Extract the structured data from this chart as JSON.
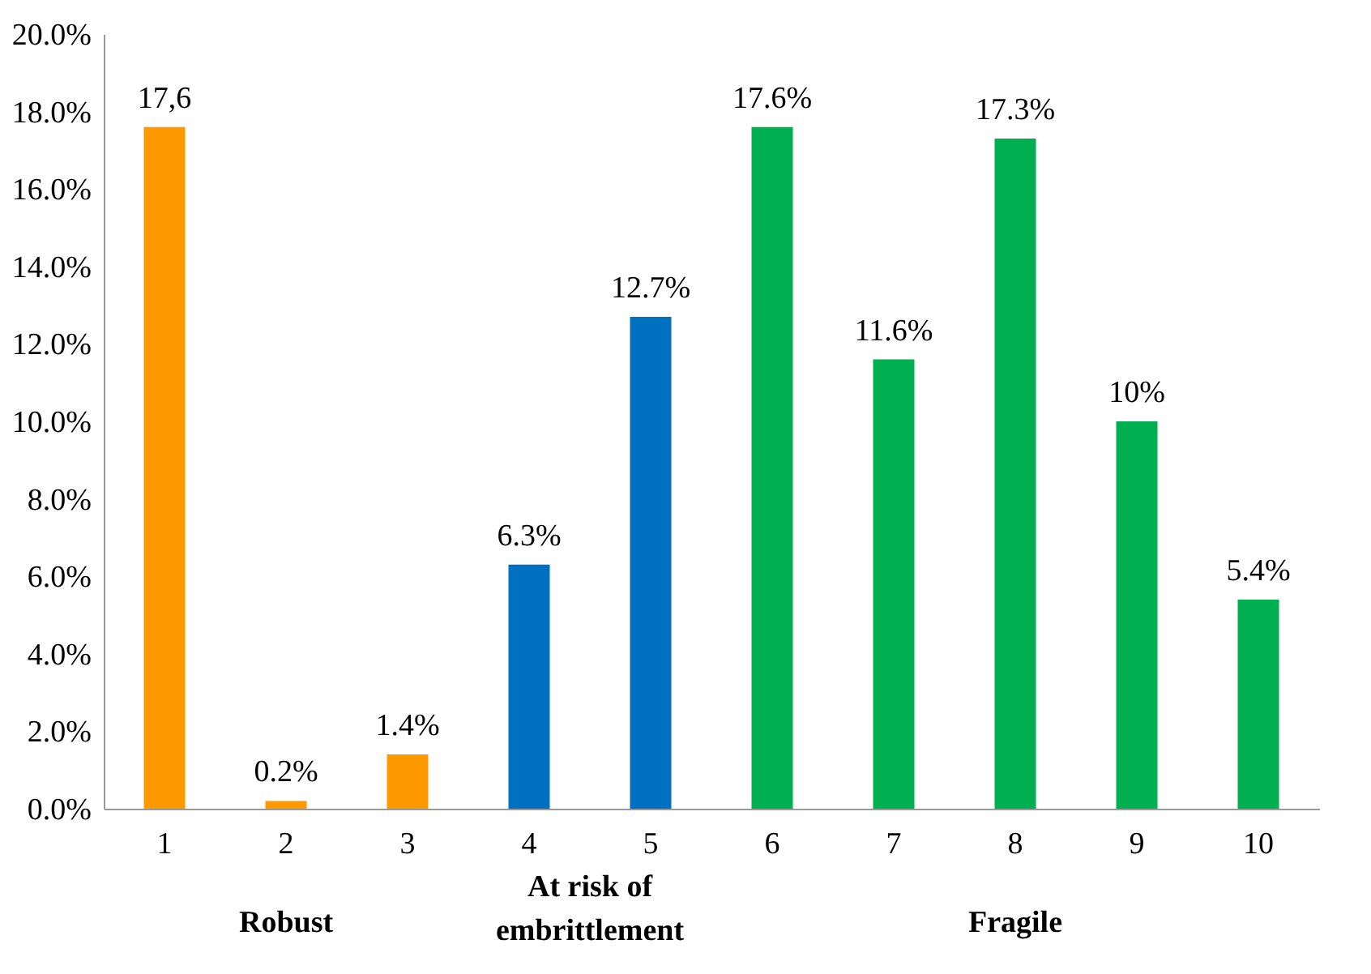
{
  "chart_data": {
    "type": "bar",
    "categories": [
      "1",
      "2",
      "3",
      "4",
      "5",
      "6",
      "7",
      "8",
      "9",
      "10"
    ],
    "values": [
      17.6,
      0.2,
      1.4,
      6.3,
      12.7,
      17.6,
      11.6,
      17.3,
      10,
      5.4
    ],
    "colors": [
      "#ff9900",
      "#ff9900",
      "#ff9900",
      "#0070c0",
      "#0070c0",
      "#00b050",
      "#00b050",
      "#00b050",
      "#00b050",
      "#00b050"
    ],
    "value_labels": [
      "17,6",
      "0.2%",
      "1.4%",
      "6.3%",
      "12.7%",
      "17.6%",
      "11.6%",
      "17.3%",
      "10%",
      "5.4%"
    ],
    "ylim": [
      0,
      20
    ],
    "yticks": [
      {
        "value": 0,
        "label": "0.0%"
      },
      {
        "value": 2,
        "label": "2.0%"
      },
      {
        "value": 4,
        "label": "4.0%"
      },
      {
        "value": 6,
        "label": "6.0%"
      },
      {
        "value": 8,
        "label": "8.0%"
      },
      {
        "value": 10,
        "label": "10.0%"
      },
      {
        "value": 12,
        "label": "12.0%"
      },
      {
        "value": 14,
        "label": "14.0%"
      },
      {
        "value": 16,
        "label": "16.0%"
      },
      {
        "value": 18,
        "label": "18.0%"
      },
      {
        "value": 20,
        "label": "20.0%"
      }
    ],
    "annotations": [
      "Robust",
      "At risk of embrittlement",
      "Fragile"
    ],
    "grid": false
  }
}
